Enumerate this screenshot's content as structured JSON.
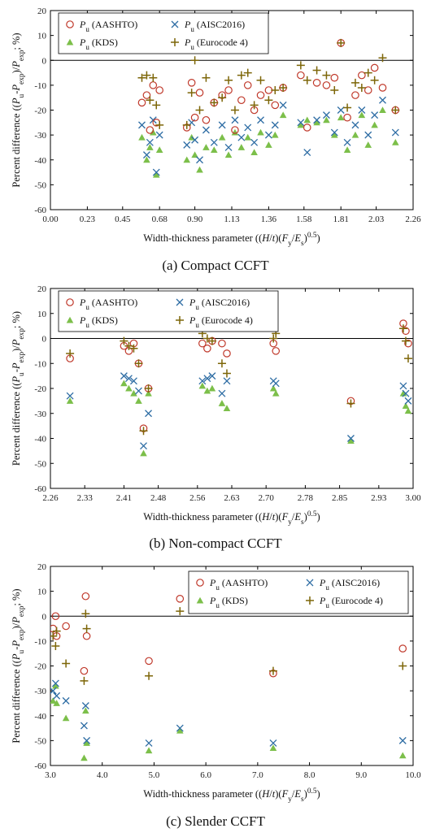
{
  "figure": {
    "legend_labels": {
      "aashto": [
        "P",
        "u",
        " (AASHTO)"
      ],
      "aisc": [
        "P",
        "u",
        " (AISC2016)"
      ],
      "kds": [
        "P",
        "u",
        " (KDS)"
      ],
      "euro": [
        "P",
        "u",
        " (Eurocode 4)"
      ]
    },
    "ylabel": [
      "Percent difference ((",
      "P",
      "u",
      "-",
      "P",
      "exp",
      ")/",
      "P",
      "exp",
      "; %)"
    ],
    "xlabel": [
      "Width-thickness parameter ((",
      "H",
      "/",
      "t",
      ")(",
      "F",
      "y",
      "/",
      "E",
      "s",
      ")",
      "0.5",
      ")"
    ],
    "colors": {
      "aashto": "#c0392b",
      "aisc": "#2e6da4",
      "kds": "#7cbf4a",
      "euro": "#7d6608"
    }
  },
  "chart_data": [
    {
      "type": "scatter",
      "caption": "(a) Compact CCFT",
      "xlim": [
        0,
        2.26
      ],
      "ylim": [
        -60,
        20
      ],
      "xticks": [
        0.0,
        0.23,
        0.45,
        0.68,
        0.9,
        1.13,
        1.36,
        1.58,
        1.81,
        2.03,
        2.26
      ],
      "xtick_labels": [
        "0.00",
        "0.23",
        "0.45",
        "0.68",
        "0.90",
        "1.13",
        "1.36",
        "1.58",
        "1.81",
        "2.03",
        "2.26"
      ],
      "yticks": [
        -60,
        -50,
        -40,
        -30,
        -20,
        -10,
        0,
        10,
        20
      ],
      "ytick_labels": [
        "-60",
        "-50",
        "-40",
        "-30",
        "-20",
        "-10",
        "0",
        "10",
        "20"
      ],
      "legend_position": "top",
      "legend_columns": 2,
      "x": [
        0.57,
        0.6,
        0.62,
        0.64,
        0.66,
        0.68,
        0.85,
        0.88,
        0.9,
        0.93,
        0.97,
        1.02,
        1.07,
        1.11,
        1.15,
        1.19,
        1.23,
        1.27,
        1.31,
        1.36,
        1.4,
        1.45,
        1.56,
        1.6,
        1.66,
        1.72,
        1.77,
        1.81,
        1.85,
        1.9,
        1.94,
        1.98,
        2.02,
        2.07,
        2.15
      ],
      "series": [
        {
          "name": "Pu (AASHTO)",
          "key": "aashto",
          "marker": "circle",
          "values": [
            -17,
            -14,
            -28,
            -10,
            -25,
            -12,
            -27,
            -9,
            -23,
            -13,
            -24,
            -17,
            -14,
            -12,
            -28,
            -16,
            -10,
            -20,
            -14,
            -12,
            -18,
            -11,
            -6,
            -27,
            -9,
            -10,
            -7,
            7,
            -23,
            -14,
            -6,
            -12,
            -3,
            -11,
            -20
          ]
        },
        {
          "name": "Pu (AISC2016)",
          "key": "aisc",
          "marker": "x",
          "values": [
            -26,
            -38,
            -33,
            -24,
            -45,
            -30,
            -34,
            -25,
            -32,
            -40,
            -28,
            -33,
            -26,
            -35,
            -24,
            -31,
            -27,
            -33,
            -24,
            -30,
            -26,
            -18,
            -25,
            -37,
            -24,
            -22,
            -29,
            -20,
            -33,
            -26,
            -20,
            -30,
            -22,
            -16,
            -29
          ]
        },
        {
          "name": "Pu (KDS)",
          "key": "kds",
          "marker": "triangle",
          "values": [
            -31,
            -40,
            -35,
            -29,
            -46,
            -36,
            -40,
            -31,
            -38,
            -44,
            -35,
            -36,
            -31,
            -38,
            -29,
            -35,
            -31,
            -37,
            -29,
            -34,
            -30,
            -22,
            -26,
            -24,
            -25,
            -24,
            -30,
            -23,
            -36,
            -30,
            -22,
            -34,
            -26,
            -20,
            -33
          ]
        },
        {
          "name": "Pu (Eurocode 4)",
          "key": "euro",
          "marker": "plus",
          "values": [
            -7,
            -6,
            -16,
            -7,
            -18,
            -26,
            -26,
            -13,
            0,
            -20,
            -7,
            -17,
            -15,
            -8,
            -20,
            -6,
            -5,
            -18,
            -8,
            -16,
            -12,
            -11,
            -2,
            -8,
            -4,
            -6,
            -12,
            7,
            -19,
            -9,
            -11,
            -5,
            -8,
            1,
            -20
          ]
        }
      ]
    },
    {
      "type": "scatter",
      "caption": "(b) Non-compact CCFT",
      "xlim": [
        2.26,
        3.0
      ],
      "ylim": [
        -60,
        20
      ],
      "xticks": [
        2.26,
        2.33,
        2.41,
        2.48,
        2.56,
        2.63,
        2.7,
        2.78,
        2.85,
        2.93,
        3.0
      ],
      "xtick_labels": [
        "2.26",
        "2.33",
        "2.41",
        "2.48",
        "2.56",
        "2.63",
        "2.70",
        "2.78",
        "2.85",
        "2.93",
        "3.00"
      ],
      "yticks": [
        -60,
        -50,
        -40,
        -30,
        -20,
        -10,
        0,
        10,
        20
      ],
      "ytick_labels": [
        "-60",
        "-50",
        "-40",
        "-30",
        "-20",
        "-10",
        "0",
        "10",
        "20"
      ],
      "legend_position": "top-left",
      "legend_columns": 2,
      "x": [
        2.3,
        2.41,
        2.42,
        2.43,
        2.44,
        2.45,
        2.46,
        2.57,
        2.58,
        2.59,
        2.61,
        2.62,
        2.715,
        2.72,
        2.873,
        2.98,
        2.985,
        2.99
      ],
      "series": [
        {
          "name": "Pu (AASHTO)",
          "key": "aashto",
          "marker": "circle",
          "values": [
            -8,
            -3,
            -5,
            -2,
            -10,
            -36,
            -20,
            -2,
            -4,
            -1,
            -2,
            -6,
            -2,
            -5,
            -25,
            6,
            3,
            -2
          ]
        },
        {
          "name": "Pu (AISC2016)",
          "key": "aisc",
          "marker": "x",
          "values": [
            -23,
            -15,
            -16,
            -17,
            -21,
            -43,
            -30,
            -17,
            -16,
            -15,
            -22,
            -17,
            -17,
            -18,
            -40,
            -19,
            -22,
            -25
          ]
        },
        {
          "name": "Pu (KDS)",
          "key": "kds",
          "marker": "triangle",
          "values": [
            -25,
            -18,
            -20,
            -22,
            -25,
            -46,
            -22,
            -19,
            -21,
            -20,
            -26,
            -28,
            -20,
            -22,
            -41,
            -22,
            -27,
            -29
          ]
        },
        {
          "name": "Pu (Eurocode 4)",
          "key": "euro",
          "marker": "plus",
          "values": [
            -6,
            -1,
            -3,
            -4,
            -10,
            -37,
            -20,
            2,
            0,
            -1,
            -10,
            -14,
            0,
            2,
            -26,
            4,
            -1,
            -8
          ]
        }
      ]
    },
    {
      "type": "scatter",
      "caption": "(c) Slender CCFT",
      "xlim": [
        3.0,
        10.0
      ],
      "ylim": [
        -60,
        20
      ],
      "xticks": [
        3.0,
        4.0,
        5.0,
        6.0,
        7.0,
        8.0,
        9.0,
        10.0
      ],
      "xtick_labels": [
        "3.0",
        "4.0",
        "5.0",
        "6.0",
        "7.0",
        "8.0",
        "9.0",
        "10.0"
      ],
      "yticks": [
        -60,
        -50,
        -40,
        -30,
        -20,
        -10,
        0,
        10,
        20
      ],
      "ytick_labels": [
        "-60",
        "-50",
        "-40",
        "-30",
        "-20",
        "-10",
        "0",
        "10",
        "20"
      ],
      "legend_position": "top-right",
      "legend_columns": 2,
      "x": [
        3.05,
        3.1,
        3.12,
        3.3,
        3.65,
        3.68,
        3.7,
        4.9,
        5.5,
        7.3,
        9.8
      ],
      "series": [
        {
          "name": "Pu (AASHTO)",
          "key": "aashto",
          "marker": "circle",
          "values": [
            -5,
            0,
            -8,
            -4,
            -22,
            8,
            -8,
            -18,
            7,
            -23,
            -13
          ]
        },
        {
          "name": "Pu (AISC2016)",
          "key": "aisc",
          "marker": "x",
          "values": [
            -30,
            -27,
            -32,
            -34,
            -44,
            -36,
            -50,
            -51,
            -45,
            -51,
            -50
          ]
        },
        {
          "name": "Pu (KDS)",
          "key": "kds",
          "marker": "triangle",
          "values": [
            -34,
            -28,
            -35,
            -41,
            -57,
            -38,
            -51,
            -54,
            -46,
            -53,
            -56
          ]
        },
        {
          "name": "Pu (Eurocode 4)",
          "key": "euro",
          "marker": "plus",
          "values": [
            -8,
            -12,
            -6,
            -19,
            -26,
            1,
            -5,
            -24,
            2,
            -22,
            -20
          ]
        }
      ]
    }
  ]
}
